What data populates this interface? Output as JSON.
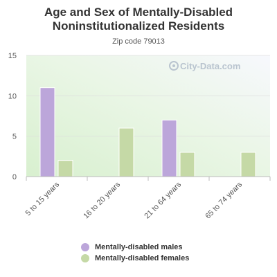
{
  "title_line1": "Age and Sex of Mentally-Disabled",
  "title_line2": "Noninstitutionalized Residents",
  "subtitle": "Zip code 79013",
  "watermark": "City-Data.com",
  "colors": {
    "males": "#bca6da",
    "females": "#c5d9a6",
    "axis_text": "#555555",
    "grid": "#dddddd"
  },
  "chart_data": {
    "type": "bar",
    "title": "Age and Sex of Mentally-Disabled Noninstitutionalized Residents",
    "subtitle": "Zip code 79013",
    "categories": [
      "5 to 15 years",
      "16 to 20 years",
      "21 to 64 years",
      "65 to 74 years"
    ],
    "series": [
      {
        "name": "Mentally-disabled males",
        "values": [
          11,
          0,
          7,
          0
        ]
      },
      {
        "name": "Mentally-disabled females",
        "values": [
          2,
          6,
          3,
          3
        ]
      }
    ],
    "yticks": [
      0,
      5,
      10,
      15
    ],
    "ylim": [
      0,
      15
    ],
    "xlabel": "",
    "ylabel": "",
    "grid": true,
    "legend_position": "bottom"
  },
  "legend": {
    "males_label": "Mentally-disabled males",
    "females_label": "Mentally-disabled females"
  }
}
